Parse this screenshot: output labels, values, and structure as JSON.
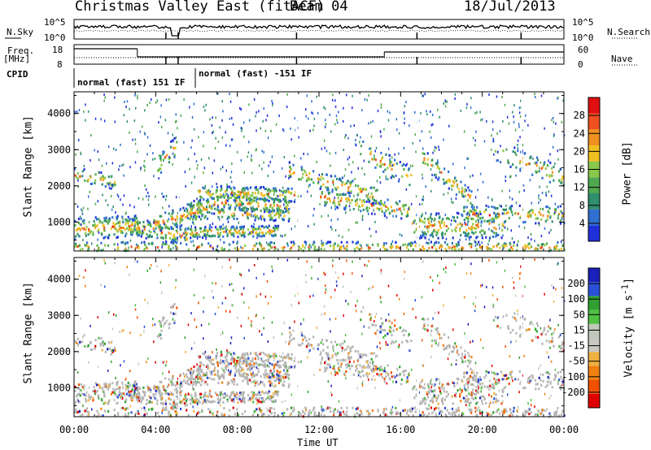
{
  "header": {
    "title": "Christmas Valley East (fitACF)",
    "beam": "Beam 04",
    "date": "18/Jul/2013"
  },
  "strips": {
    "nsky_label": "N.Sky",
    "nsearch_label": "N.Search",
    "nsky_ticks": [
      "10^5",
      "10^0"
    ],
    "nsearch_ticks": [
      "10^5",
      "10^0"
    ],
    "freq_label_line1": "Freq.",
    "freq_label_line2": "[MHz]",
    "freq_ticks": [
      "18",
      "8"
    ],
    "nave_label": "Nave",
    "nave_ticks": [
      "60",
      "0"
    ],
    "cpid_label": "CPID",
    "cpid_segments": [
      "normal (fast) 151 IF",
      "normal (fast) -151 IF"
    ]
  },
  "x_axis": {
    "label": "Time UT",
    "ticks": [
      "00:00",
      "04:00",
      "08:00",
      "12:00",
      "16:00",
      "20:00",
      "00:00"
    ]
  },
  "colors": {
    "power": [
      "#2030d8",
      "#2f6fd0",
      "#2f8f6f",
      "#50a850",
      "#88c84a",
      "#f0c020",
      "#f09020",
      "#f05020",
      "#e01010"
    ],
    "velocity": [
      "#e00000",
      "#f05000",
      "#f08010",
      "#f0b040",
      "#c8c8c0",
      "#c0c8b8",
      "#50c040",
      "#30a030",
      "#2a50d8",
      "#1a20b8"
    ],
    "ground_scatter": "#b4b4b4"
  },
  "chart_data": [
    {
      "type": "heatmap",
      "name": "power",
      "ylabel": "Slant Range [km]",
      "yticks": [
        1000,
        2000,
        3000,
        4000
      ],
      "ylim": [
        200,
        4600
      ],
      "xlim_hours": [
        0,
        24
      ],
      "colorbar": {
        "label": "Power [dB]",
        "ticks": [
          "4",
          "8",
          "12",
          "16",
          "20",
          "24",
          "28"
        ],
        "range": [
          0,
          32
        ]
      }
    },
    {
      "type": "heatmap",
      "name": "velocity",
      "ylabel": "Slant Range [km]",
      "yticks": [
        1000,
        2000,
        3000,
        4000
      ],
      "ylim": [
        200,
        4600
      ],
      "xlim_hours": [
        0,
        24
      ],
      "colorbar": {
        "label": "Velocity [m s^-1]",
        "ticks": [
          "200",
          "100",
          "50",
          "15",
          "-15",
          "-50",
          "-100",
          "-200"
        ]
      }
    }
  ]
}
